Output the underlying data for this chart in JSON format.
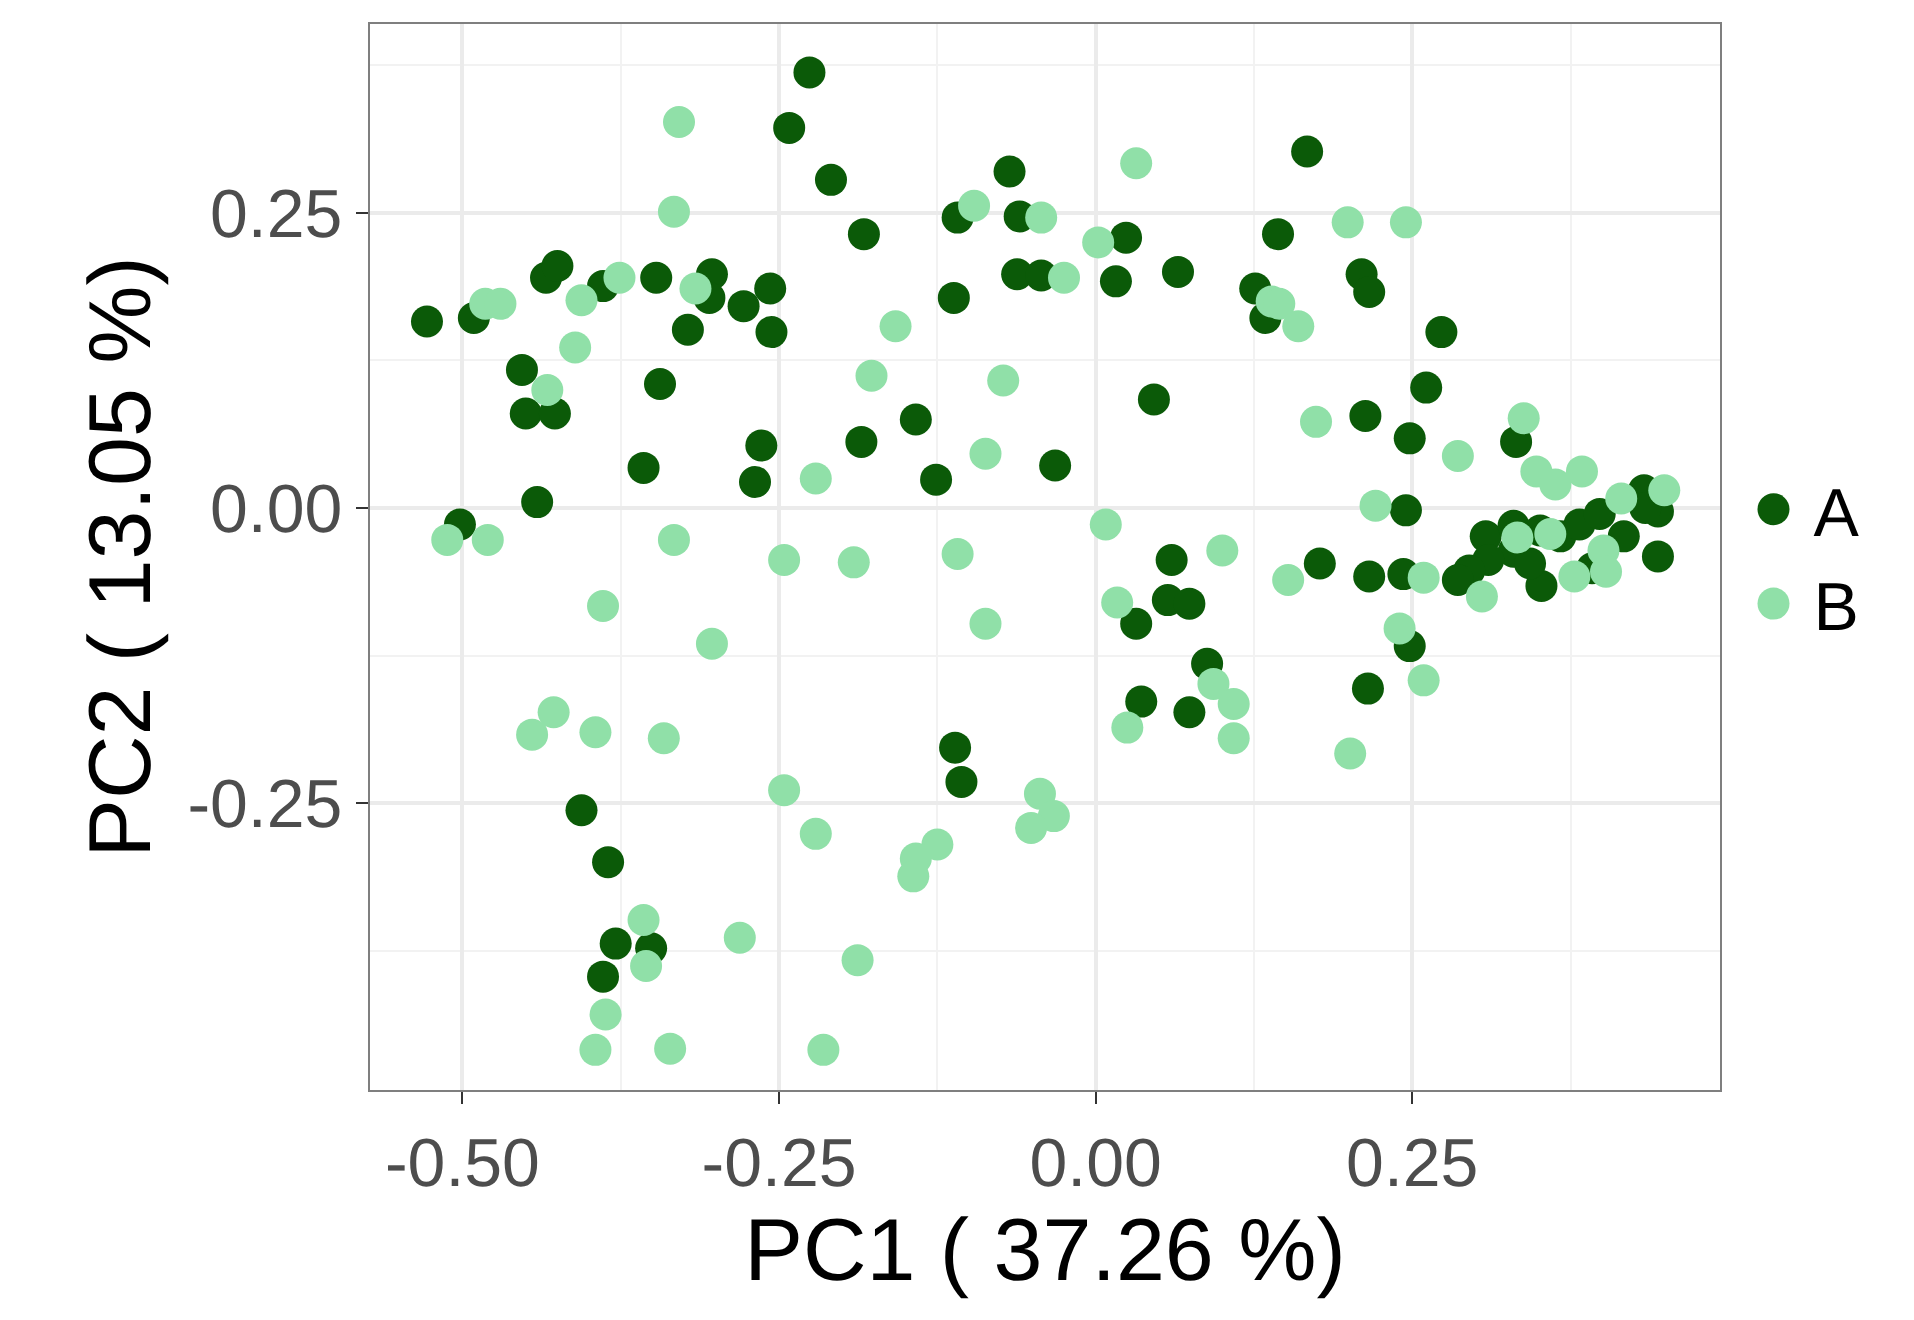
{
  "chart_data": {
    "type": "scatter",
    "xlabel": "PC1 ( 37.26 %)",
    "ylabel": "PC2 ( 13.05 %)",
    "xlim": [
      -0.573,
      0.493
    ],
    "ylim": [
      -0.493,
      0.41
    ],
    "xticks": [
      {
        "value": -0.5,
        "label": "-0.50"
      },
      {
        "value": -0.25,
        "label": "-0.25"
      },
      {
        "value": 0,
        "label": "0.00"
      },
      {
        "value": 0.25,
        "label": "0.25"
      }
    ],
    "yticks": [
      {
        "value": -0.25,
        "label": "-0.25"
      },
      {
        "value": 0,
        "label": "0.00"
      },
      {
        "value": 0.25,
        "label": "0.25"
      }
    ],
    "grid": true,
    "legend": "right",
    "marker": "circle",
    "series": [
      {
        "name": "A",
        "color": "#0b5a08",
        "x": [
          -0.528,
          -0.491,
          -0.502,
          -0.453,
          -0.434,
          -0.425,
          -0.45,
          -0.427,
          -0.441,
          -0.389,
          -0.347,
          -0.303,
          -0.305,
          -0.278,
          -0.257,
          -0.256,
          -0.322,
          -0.344,
          -0.357,
          -0.269,
          -0.264,
          -0.242,
          -0.226,
          -0.209,
          -0.183,
          -0.185,
          -0.142,
          -0.126,
          -0.112,
          -0.109,
          -0.068,
          -0.06,
          -0.062,
          -0.043,
          -0.032,
          0.024,
          0.016,
          0.065,
          0.046,
          0.126,
          0.134,
          0.144,
          0.167,
          0.21,
          0.216,
          0.273,
          0.261,
          0.248,
          0.213,
          0.245,
          0.332,
          0.308,
          0.33,
          0.351,
          0.367,
          0.382,
          0.398,
          0.433,
          0.444,
          0.444,
          0.417,
          0.392,
          0.352,
          0.33,
          0.31,
          0.295,
          0.243,
          0.286,
          0.343,
          0.434,
          0.216,
          0.248,
          0.215,
          0.177,
          0.06,
          0.057,
          0.074,
          0.032,
          0.088,
          0.036,
          0.074,
          -0.111,
          -0.106,
          -0.406,
          -0.385,
          -0.379,
          -0.351,
          -0.389
        ],
        "values": [
          0.158,
          0.161,
          -0.014,
          0.117,
          0.195,
          0.205,
          0.08,
          0.08,
          0.005,
          0.188,
          0.195,
          0.198,
          0.178,
          0.171,
          0.186,
          0.149,
          0.151,
          0.105,
          0.034,
          0.022,
          0.053,
          0.322,
          0.369,
          0.278,
          0.232,
          0.056,
          0.075,
          0.024,
          0.178,
          0.246,
          0.285,
          0.247,
          0.198,
          0.197,
          0.036,
          0.229,
          0.192,
          0.2,
          0.092,
          0.186,
          0.161,
          0.232,
          0.302,
          0.198,
          0.183,
          0.149,
          0.102,
          0.059,
          0.078,
          -0.002,
          0.056,
          -0.024,
          -0.015,
          -0.019,
          -0.024,
          -0.014,
          -0.005,
          0.015,
          -0.003,
          -0.041,
          -0.024,
          -0.051,
          -0.066,
          -0.037,
          -0.044,
          -0.053,
          -0.056,
          -0.061,
          -0.047,
          0.0,
          -0.058,
          -0.117,
          -0.153,
          -0.047,
          -0.044,
          -0.078,
          -0.081,
          -0.098,
          -0.132,
          -0.164,
          -0.173,
          -0.203,
          -0.232,
          -0.256,
          -0.3,
          -0.369,
          -0.373,
          -0.397
        ]
      },
      {
        "name": "B",
        "color": "#90e0a8",
        "x": [
          -0.512,
          -0.482,
          -0.47,
          -0.406,
          -0.411,
          -0.376,
          -0.433,
          -0.329,
          -0.333,
          -0.316,
          -0.48,
          -0.333,
          -0.246,
          -0.221,
          -0.096,
          -0.043,
          0.032,
          0.002,
          -0.025,
          -0.158,
          -0.177,
          -0.073,
          -0.087,
          0.008,
          0.1,
          -0.109,
          -0.191,
          0.139,
          0.199,
          0.245,
          0.145,
          0.16,
          0.174,
          0.286,
          0.338,
          0.221,
          0.348,
          0.384,
          0.415,
          0.449,
          0.359,
          0.333,
          0.401,
          0.363,
          0.152,
          0.259,
          0.305,
          0.403,
          0.378,
          0.24,
          0.259,
          0.201,
          -0.087,
          0.017,
          0.025,
          0.093,
          0.109,
          0.109,
          -0.044,
          -0.033,
          -0.051,
          -0.125,
          -0.142,
          -0.144,
          -0.188,
          -0.215,
          -0.389,
          -0.303,
          -0.428,
          -0.445,
          -0.395,
          -0.341,
          -0.246,
          -0.221,
          -0.357,
          -0.355,
          -0.281,
          -0.387,
          -0.395,
          -0.336
        ],
        "values": [
          -0.027,
          0.173,
          0.173,
          0.176,
          0.136,
          0.195,
          0.1,
          0.327,
          0.251,
          0.186,
          -0.027,
          -0.027,
          -0.044,
          0.025,
          0.256,
          0.246,
          0.292,
          0.225,
          0.195,
          0.154,
          0.112,
          0.108,
          0.046,
          -0.014,
          -0.036,
          -0.039,
          -0.046,
          0.175,
          0.242,
          0.242,
          0.173,
          0.154,
          0.073,
          0.044,
          0.076,
          0.002,
          0.031,
          0.031,
          0.008,
          0.015,
          -0.022,
          -0.025,
          -0.036,
          0.02,
          -0.061,
          -0.059,
          -0.075,
          -0.054,
          -0.058,
          -0.102,
          -0.146,
          -0.208,
          -0.098,
          -0.08,
          -0.186,
          -0.149,
          -0.166,
          -0.195,
          -0.242,
          -0.261,
          -0.271,
          -0.285,
          -0.297,
          -0.312,
          -0.383,
          -0.459,
          -0.083,
          -0.115,
          -0.173,
          -0.192,
          -0.19,
          -0.195,
          -0.239,
          -0.276,
          -0.349,
          -0.388,
          -0.364,
          -0.429,
          -0.459,
          -0.458
        ]
      }
    ]
  }
}
